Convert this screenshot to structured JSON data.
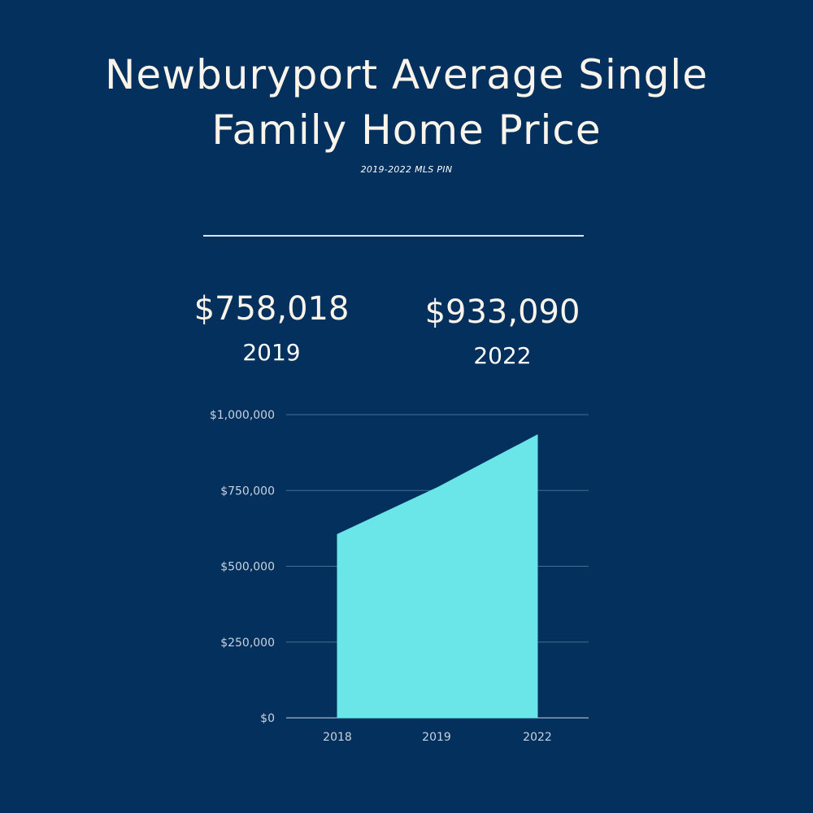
{
  "header": {
    "title_line1": "Newburyport Average Single",
    "title_line2": "Family Home Price",
    "subtitle": "2019-2022 MLS PIN"
  },
  "stats": [
    {
      "value": "$758,018",
      "year": "2019"
    },
    {
      "value": "$933,090",
      "year": "2022"
    }
  ],
  "colors": {
    "background": "#03305c",
    "area_fill": "#6ae5e8",
    "gridline": "#4a6a8e",
    "tick_text": "#c9d3df"
  },
  "chart_data": {
    "type": "area",
    "categories": [
      "2018",
      "2019",
      "2022"
    ],
    "values": [
      605000,
      758018,
      933090
    ],
    "ylim": [
      0,
      1000000
    ],
    "yticks": [
      0,
      250000,
      500000,
      750000,
      1000000
    ],
    "ytick_labels": [
      "$0",
      "$250,000",
      "$500,000",
      "$750,000",
      "$1,000,000"
    ],
    "grid": true,
    "legend": "none"
  }
}
